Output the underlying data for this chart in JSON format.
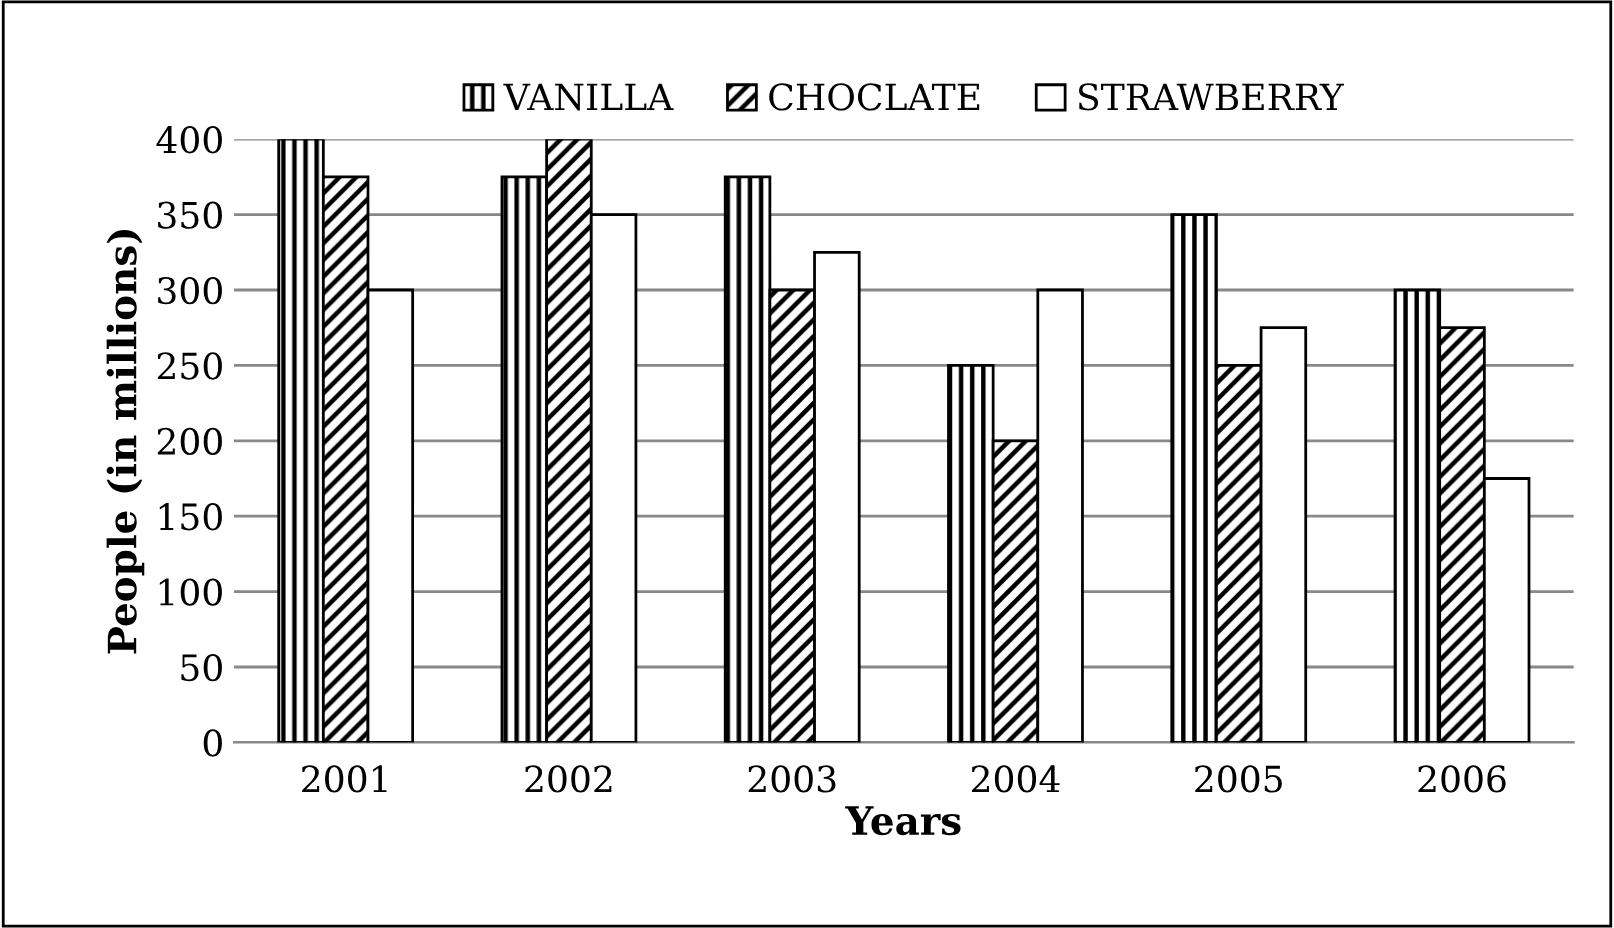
{
  "chart_data": {
    "type": "bar",
    "xlabel": "Years",
    "ylabel": "People (in millions)",
    "categories": [
      "2001",
      "2002",
      "2003",
      "2004",
      "2005",
      "2006"
    ],
    "series": [
      {
        "name": "VANILLA",
        "color": "#000000",
        "values": [
          400,
          375,
          375,
          250,
          350,
          300
        ]
      },
      {
        "name": "CHOCLATE",
        "color": "#000000",
        "values": [
          375,
          400,
          300,
          200,
          250,
          275
        ]
      },
      {
        "name": "STRAWBERRY",
        "color": "#ffffff",
        "values": [
          300,
          350,
          325,
          300,
          275,
          175
        ]
      }
    ],
    "ylim": [
      0,
      400
    ],
    "yticks": [
      0,
      50,
      100,
      150,
      200,
      250,
      300,
      350,
      400
    ],
    "grid": "y",
    "legend": "top"
  }
}
